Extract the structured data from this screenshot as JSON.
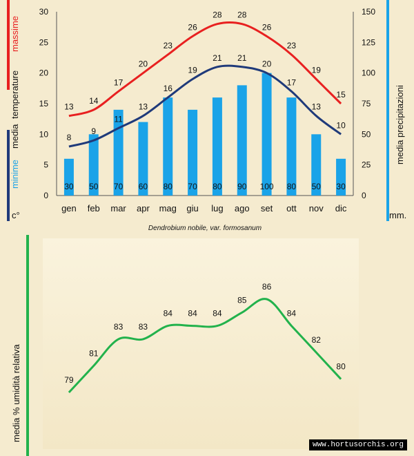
{
  "chart_data": [
    {
      "type": "bar+line",
      "title": "Dendrobium nobile, var. formosanum",
      "categories": [
        "gen",
        "feb",
        "mar",
        "apr",
        "mag",
        "giu",
        "lug",
        "ago",
        "set",
        "ott",
        "nov",
        "dic"
      ],
      "left_axis": {
        "label_media": "media",
        "label_temperature": "temperature",
        "label_massime": "massime",
        "label_minime": "minime",
        "unit": "c°",
        "ylim": [
          0,
          30
        ],
        "ticks": [
          0,
          5,
          10,
          15,
          20,
          25,
          30
        ]
      },
      "right_axis": {
        "label": "media precipitazioni",
        "unit": "mm.",
        "ylim": [
          0,
          150
        ],
        "ticks": [
          0,
          25,
          50,
          75,
          100,
          125,
          150
        ]
      },
      "series": [
        {
          "name": "precipitazioni",
          "type": "bar",
          "axis": "right",
          "color": "#1aa3e8",
          "values": [
            30,
            50,
            70,
            60,
            80,
            70,
            80,
            90,
            100,
            80,
            50,
            30
          ]
        },
        {
          "name": "temperature massime",
          "type": "line",
          "axis": "left",
          "color": "#e82020",
          "values": [
            13,
            14,
            17,
            20,
            23,
            26,
            28,
            28,
            26,
            23,
            19,
            15
          ]
        },
        {
          "name": "temperature minime",
          "type": "line",
          "axis": "left",
          "color": "#1f3a7a",
          "values": [
            8,
            9,
            11,
            13,
            16,
            19,
            21,
            21,
            20,
            17,
            13,
            10
          ]
        }
      ]
    },
    {
      "type": "line",
      "ylabel": "media % umidità relativa",
      "color": "#22b24c",
      "series": [
        {
          "name": "umidità relativa",
          "values": [
            79,
            81,
            83,
            83,
            84,
            84,
            84,
            85,
            86,
            84,
            82,
            80
          ]
        }
      ]
    }
  ],
  "colors": {
    "max_bar": "#e82020",
    "min_bar": "#1f3a7a",
    "precip_bar": "#1aa3e8",
    "hum_bar": "#22b24c"
  },
  "watermark": "www.hortusorchis.org"
}
